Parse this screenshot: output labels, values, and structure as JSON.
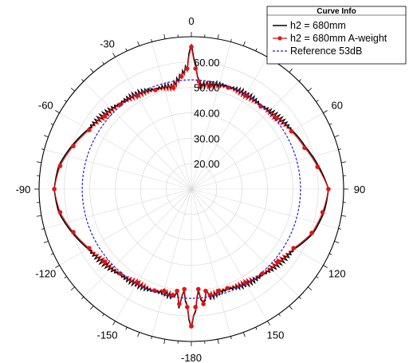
{
  "colors": {
    "background": "#ffffff",
    "grid": "#d9d9d9",
    "axis": "#000000",
    "series_black": "#000000",
    "series_red": "#e41414",
    "series_blue": "#2020d0"
  },
  "chart_data": {
    "type": "polar-line",
    "angle_unit": "deg",
    "angle_zero": "top",
    "angle_direction": "clockwise",
    "angle_ticks": [
      0,
      -30,
      30,
      -60,
      60,
      -90,
      90,
      -120,
      120,
      -150,
      150,
      -180
    ],
    "angle_tick_labels": [
      "0",
      "-30",
      "",
      "-60",
      "60",
      "-90",
      "90",
      "-120",
      "120",
      "-150",
      "150",
      "-180"
    ],
    "radial_range": [
      10,
      70
    ],
    "radial_ticks": [
      20,
      30,
      40,
      50,
      60
    ],
    "radial_tick_labels": [
      "20.00",
      "30.00",
      "40.00",
      "50.00",
      "60.00"
    ],
    "grid": true,
    "legend": {
      "title": "Curve Info",
      "position": "top-right",
      "entries": [
        "h2 = 680mm",
        "h2 = 680mm A-weight",
        "Reference 53dB"
      ]
    },
    "series": [
      {
        "name": "h2 = 680mm",
        "style": "solid",
        "color_key": "series_black",
        "theta": [
          -180,
          -178,
          -176,
          -174,
          -172,
          -170,
          -165,
          -160,
          -150,
          -140,
          -130,
          -120,
          -110,
          -100,
          -90,
          -80,
          -70,
          -60,
          -50,
          -40,
          -30,
          -20,
          -10,
          -5,
          -2,
          0,
          2,
          4,
          5,
          10,
          20,
          30,
          40,
          50,
          60,
          70,
          80,
          90,
          100,
          110,
          120,
          130,
          140,
          150,
          160,
          165,
          170,
          172,
          174,
          176,
          178,
          180
        ],
        "r": [
          64.5,
          57,
          50,
          56,
          51,
          53,
          52,
          53,
          53,
          54,
          55,
          57,
          60,
          63,
          64,
          63,
          60,
          57,
          55,
          54,
          53,
          52,
          51,
          55,
          58,
          67,
          58,
          53,
          51,
          52,
          53,
          53,
          53,
          54,
          56,
          58,
          61,
          64,
          63,
          61,
          57,
          55,
          54,
          53,
          52,
          52,
          53,
          51,
          56,
          50,
          57,
          64.5
        ]
      },
      {
        "name": "h2 = 680mm A-weight",
        "style": "markers+line",
        "color_key": "series_red",
        "theta": [
          -180,
          -178,
          -176,
          -174,
          -172,
          -170,
          -165,
          -160,
          -150,
          -140,
          -130,
          -120,
          -110,
          -100,
          -90,
          -80,
          -70,
          -60,
          -50,
          -40,
          -30,
          -20,
          -10,
          -5,
          -2,
          0,
          2,
          4,
          5,
          10,
          20,
          30,
          40,
          50,
          60,
          70,
          80,
          90,
          100,
          110,
          120,
          130,
          140,
          150,
          160,
          165,
          170,
          172,
          174,
          176,
          178,
          180
        ],
        "r": [
          64,
          56.5,
          49.5,
          55.5,
          50.5,
          52.5,
          51.5,
          52.5,
          52.5,
          53.5,
          54.5,
          56.5,
          59.5,
          62.5,
          64,
          62.5,
          59.5,
          56.5,
          54.5,
          53.5,
          52.5,
          51.5,
          50.5,
          54.5,
          57.5,
          66,
          57.5,
          52.5,
          50.5,
          51.5,
          52.5,
          52.5,
          52.5,
          53.5,
          55.5,
          57.5,
          60.5,
          64,
          62.5,
          60.5,
          56.5,
          54.5,
          53.5,
          52.5,
          51.5,
          51.5,
          52.5,
          50.5,
          55.5,
          49.5,
          56.5,
          64
        ]
      },
      {
        "name": "Reference 53dB",
        "style": "dashed",
        "color_key": "series_blue",
        "constant_r": 53
      }
    ]
  }
}
